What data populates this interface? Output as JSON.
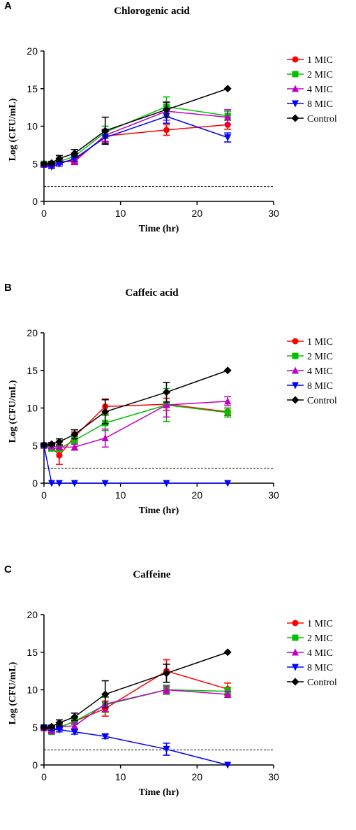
{
  "panel_letters": [
    "A",
    "B",
    "C"
  ],
  "chart_data": [
    {
      "type": "line",
      "title": "Chlorogenic acid",
      "xlabel": "Time (hr)",
      "ylabel": "Log (CFU/mL)",
      "xlim": [
        0,
        30
      ],
      "ylim": [
        0,
        20
      ],
      "xticks": [
        "0",
        "10",
        "20",
        "30"
      ],
      "yticks": [
        "0",
        "5",
        "10",
        "15",
        "20"
      ],
      "x": [
        0,
        1,
        2,
        4,
        8,
        16,
        24
      ],
      "grid": false,
      "legend_position": "right",
      "reference_line": {
        "y": 2,
        "style": "dashed"
      },
      "series": [
        {
          "name": "1 MIC",
          "color": "#ff0000",
          "marker": "circle",
          "values": [
            4.9,
            4.8,
            5.2,
            5.5,
            8.7,
            9.5,
            10.2
          ],
          "errors": [
            0.2,
            0.2,
            0.3,
            0.4,
            0.8,
            0.7,
            0.6
          ]
        },
        {
          "name": "2 MIC",
          "color": "#00c000",
          "marker": "square",
          "values": [
            5.0,
            5.0,
            5.3,
            6.0,
            9.2,
            12.6,
            11.4
          ],
          "errors": [
            0.2,
            0.2,
            0.3,
            0.4,
            0.8,
            1.3,
            0.6
          ]
        },
        {
          "name": "4 MIC",
          "color": "#c000c0",
          "marker": "triangle-up",
          "values": [
            4.9,
            4.9,
            5.3,
            5.3,
            8.8,
            12.0,
            11.2
          ],
          "errors": [
            0.2,
            0.3,
            0.3,
            0.4,
            0.8,
            1.2,
            1.0
          ]
        },
        {
          "name": "8 MIC",
          "color": "#0000ff",
          "marker": "triangle-down",
          "values": [
            4.8,
            4.6,
            5.0,
            5.7,
            8.5,
            11.3,
            8.5
          ],
          "errors": [
            0.2,
            0.2,
            0.3,
            0.4,
            0.8,
            0.9,
            0.6
          ]
        },
        {
          "name": "Control",
          "color": "#000000",
          "marker": "diamond",
          "values": [
            5.0,
            5.1,
            5.7,
            6.4,
            9.4,
            12.2,
            15.0
          ],
          "errors": [
            0.2,
            0.2,
            0.4,
            0.5,
            1.8,
            1.0,
            0
          ]
        }
      ]
    },
    {
      "type": "line",
      "title": "Caffeic acid",
      "xlabel": "Time (hr)",
      "ylabel": "Log (CFU/mL)",
      "xlim": [
        0,
        30
      ],
      "ylim": [
        0,
        20
      ],
      "xticks": [
        "0",
        "10",
        "20",
        "30"
      ],
      "yticks": [
        "0",
        "5",
        "10",
        "15",
        "20"
      ],
      "x": [
        0,
        1,
        2,
        4,
        8,
        16,
        24
      ],
      "grid": false,
      "legend_position": "right",
      "reference_line": {
        "y": 2,
        "style": "dashed"
      },
      "series": [
        {
          "name": "1 MIC",
          "color": "#ff0000",
          "marker": "circle",
          "values": [
            5.0,
            4.8,
            3.7,
            6.2,
            10.2,
            10.5,
            9.5
          ],
          "errors": [
            0.2,
            0.3,
            1.2,
            0.6,
            1.0,
            0.8,
            0.5
          ]
        },
        {
          "name": "2 MIC",
          "color": "#00c000",
          "marker": "square",
          "values": [
            5.0,
            4.6,
            4.6,
            5.7,
            8.0,
            10.4,
            9.4
          ],
          "errors": [
            0.2,
            0.3,
            0.4,
            0.5,
            1.0,
            2.2,
            0.6
          ]
        },
        {
          "name": "4 MIC",
          "color": "#c000c0",
          "marker": "triangle-up",
          "values": [
            5.0,
            4.9,
            4.8,
            4.8,
            6.0,
            10.4,
            10.9
          ],
          "errors": [
            0.2,
            0.3,
            0.3,
            0.4,
            1.2,
            1.6,
            0.6
          ]
        },
        {
          "name": "8 MIC",
          "color": "#0000ff",
          "marker": "triangle-down",
          "values": [
            5.0,
            0,
            0,
            0,
            0,
            0,
            0
          ],
          "errors": [
            0.2,
            0,
            0,
            0,
            0,
            0,
            0
          ]
        },
        {
          "name": "Control",
          "color": "#000000",
          "marker": "diamond",
          "values": [
            5.1,
            5.2,
            5.5,
            6.5,
            9.5,
            12.1,
            15.0
          ],
          "errors": [
            0.2,
            0.2,
            0.4,
            0.6,
            1.6,
            1.3,
            0
          ]
        }
      ]
    },
    {
      "type": "line",
      "title": "Caffeine",
      "xlabel": "Time (hr)",
      "ylabel": "Log (CFU/mL)",
      "xlim": [
        0,
        30
      ],
      "ylim": [
        0,
        20
      ],
      "xticks": [
        "0",
        "10",
        "20",
        "30"
      ],
      "yticks": [
        "0",
        "5",
        "10",
        "15",
        "20"
      ],
      "x": [
        0,
        1,
        2,
        4,
        8,
        16,
        24
      ],
      "grid": false,
      "legend_position": "right",
      "reference_line": {
        "y": 2,
        "style": "dashed"
      },
      "series": [
        {
          "name": "1 MIC",
          "color": "#ff0000",
          "marker": "circle",
          "values": [
            4.9,
            4.6,
            5.0,
            5.8,
            7.5,
            12.5,
            10.1
          ],
          "errors": [
            0.2,
            0.2,
            0.3,
            0.4,
            1.0,
            1.5,
            0.8
          ]
        },
        {
          "name": "2 MIC",
          "color": "#00c000",
          "marker": "square",
          "values": [
            4.9,
            4.4,
            5.0,
            5.8,
            8.0,
            10.0,
            9.8
          ],
          "errors": [
            0.2,
            0.2,
            0.3,
            0.4,
            1.0,
            0.6,
            0.5
          ]
        },
        {
          "name": "4 MIC",
          "color": "#c000c0",
          "marker": "triangle-up",
          "values": [
            4.9,
            4.5,
            5.1,
            5.2,
            8.1,
            10.0,
            9.4
          ],
          "errors": [
            0.2,
            0.2,
            0.3,
            0.4,
            1.0,
            0.5,
            0.4
          ]
        },
        {
          "name": "8 MIC",
          "color": "#0000ff",
          "marker": "triangle-down",
          "values": [
            5.0,
            4.8,
            4.7,
            4.4,
            3.8,
            2.1,
            0
          ],
          "errors": [
            0.2,
            0.2,
            0.3,
            0.3,
            0.3,
            0.8,
            0
          ]
        },
        {
          "name": "Control",
          "color": "#000000",
          "marker": "diamond",
          "values": [
            5.0,
            5.1,
            5.6,
            6.4,
            9.4,
            12.2,
            15.0
          ],
          "errors": [
            0.2,
            0.2,
            0.4,
            0.5,
            1.8,
            1.2,
            0
          ]
        }
      ]
    }
  ]
}
